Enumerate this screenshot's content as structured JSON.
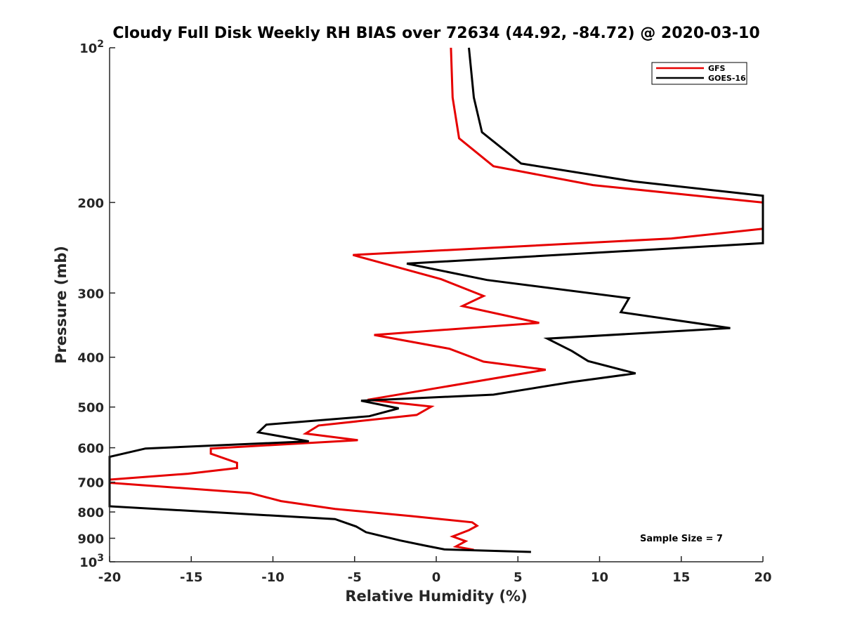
{
  "chart_data": {
    "type": "line",
    "title": "Cloudy Full Disk Weekly RH BIAS over 72634 (44.92, -84.72) @ 2020-03-10",
    "xlabel": "Relative Humidity (%)",
    "ylabel": "Pressure (mb)",
    "xlim": [
      -20,
      20
    ],
    "ylim": [
      100,
      1000
    ],
    "yscale": "log",
    "y_reversed": true,
    "x_ticks": [
      "-20",
      "-15",
      "-10",
      "-5",
      "0",
      "5",
      "10",
      "15",
      "20"
    ],
    "y_ticks": [
      {
        "value": 100,
        "label": "10",
        "sup": "2"
      },
      {
        "value": 200,
        "label": "200",
        "sup": ""
      },
      {
        "value": 300,
        "label": "300",
        "sup": ""
      },
      {
        "value": 400,
        "label": "400",
        "sup": ""
      },
      {
        "value": 500,
        "label": "500",
        "sup": ""
      },
      {
        "value": 600,
        "label": "600",
        "sup": ""
      },
      {
        "value": 700,
        "label": "700",
        "sup": ""
      },
      {
        "value": 800,
        "label": "800",
        "sup": ""
      },
      {
        "value": 900,
        "label": "900",
        "sup": ""
      },
      {
        "value": 1000,
        "label": "10",
        "sup": "3"
      }
    ],
    "grid": false,
    "legend_position": "top-right",
    "annotation": "Sample Size = 7",
    "series": [
      {
        "name": "GFS",
        "color": "#e60000",
        "points": [
          [
            0.9,
            100
          ],
          [
            1.0,
            125
          ],
          [
            1.4,
            150
          ],
          [
            3.5,
            170
          ],
          [
            9.6,
            185
          ],
          [
            20,
            200
          ],
          [
            20,
            225
          ],
          [
            14.4,
            235
          ],
          [
            -5.1,
            253
          ],
          [
            0.3,
            282
          ],
          [
            2.9,
            304
          ],
          [
            1.6,
            318
          ],
          [
            6.3,
            343
          ],
          [
            -3.8,
            362
          ],
          [
            0.8,
            385
          ],
          [
            2.9,
            408
          ],
          [
            6.7,
            423
          ],
          [
            -4.2,
            484
          ],
          [
            -0.3,
            499
          ],
          [
            -1.2,
            518
          ],
          [
            -7.2,
            543
          ],
          [
            -8.0,
            563
          ],
          [
            -4.8,
            580
          ],
          [
            -13.8,
            602
          ],
          [
            -13.8,
            616
          ],
          [
            -12.2,
            642
          ],
          [
            -12.2,
            657
          ],
          [
            -15.2,
            674
          ],
          [
            -20,
            692
          ],
          [
            -20,
            702
          ],
          [
            -11.4,
            735
          ],
          [
            -9.5,
            762
          ],
          [
            -6.2,
            789
          ],
          [
            -1.5,
            815
          ],
          [
            2.2,
            838
          ],
          [
            2.5,
            851
          ],
          [
            2.0,
            868
          ],
          [
            1.0,
            893
          ],
          [
            1.8,
            912
          ],
          [
            1.2,
            934
          ],
          [
            2.3,
            948
          ]
        ]
      },
      {
        "name": "GOES-16",
        "color": "#000000",
        "points": [
          [
            2.0,
            100
          ],
          [
            2.3,
            125
          ],
          [
            2.8,
            146
          ],
          [
            5.2,
            168
          ],
          [
            12.1,
            182
          ],
          [
            20,
            194
          ],
          [
            20,
            240
          ],
          [
            -1.8,
            263
          ],
          [
            3.1,
            283
          ],
          [
            11.8,
            307
          ],
          [
            11.3,
            327
          ],
          [
            18.0,
            351
          ],
          [
            6.8,
            368
          ],
          [
            8.3,
            389
          ],
          [
            9.3,
            407
          ],
          [
            12.2,
            430
          ],
          [
            8.3,
            447
          ],
          [
            3.5,
            473
          ],
          [
            -4.6,
            486
          ],
          [
            -2.3,
            503
          ],
          [
            -4.1,
            521
          ],
          [
            -10.4,
            541
          ],
          [
            -10.9,
            560
          ],
          [
            -7.8,
            583
          ],
          [
            -17.8,
            602
          ],
          [
            -20,
            625
          ],
          [
            -20,
            780
          ],
          [
            -6.2,
            826
          ],
          [
            -4.9,
            854
          ],
          [
            -4.3,
            876
          ],
          [
            -2.2,
            909
          ],
          [
            -0.7,
            930
          ],
          [
            0.5,
            946
          ],
          [
            5.8,
            957
          ]
        ]
      }
    ]
  }
}
